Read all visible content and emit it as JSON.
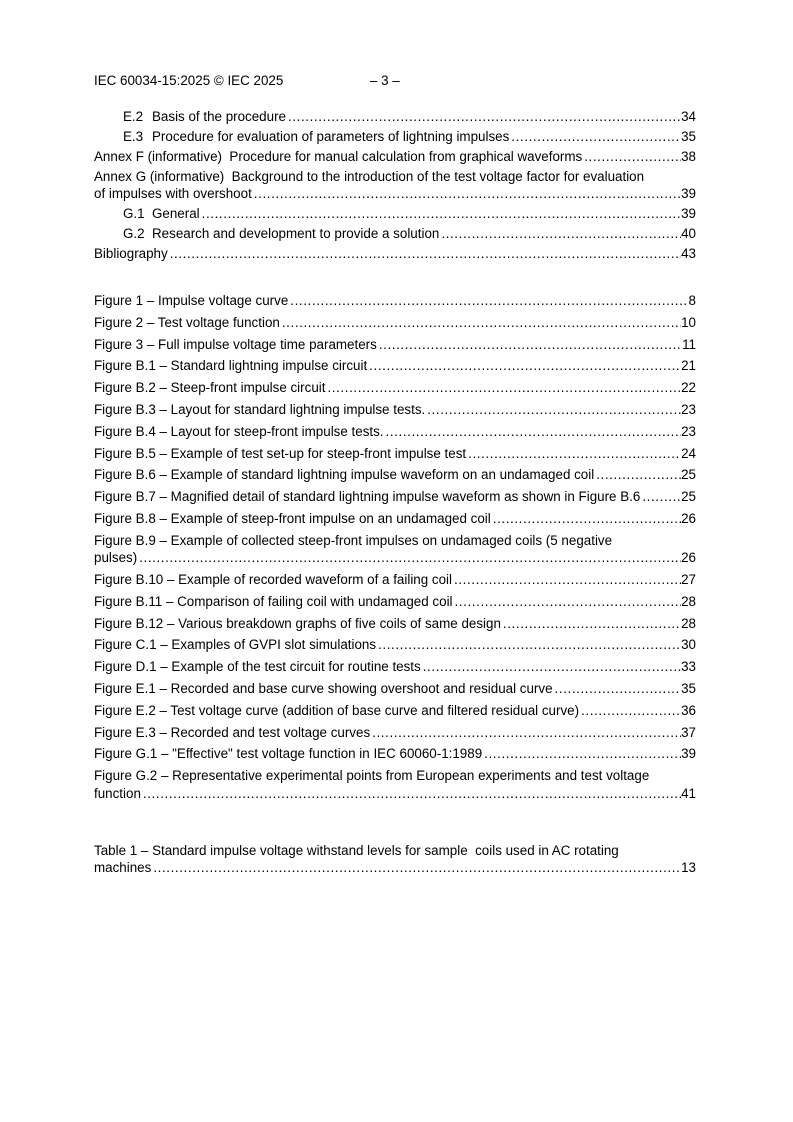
{
  "header": {
    "doc_reference": "IEC 60034-15:2025 © IEC 2025",
    "page_label": "– 3 –"
  },
  "contents": {
    "entries": [
      {
        "number": "E.2",
        "title": "Basis of the procedure",
        "page": "34",
        "indented": true
      },
      {
        "number": "E.3",
        "title": "Procedure for evaluation of parameters of lightning impulses",
        "page": "35",
        "indented": true
      },
      {
        "number": "",
        "title": "Annex F (informative)  Procedure for manual calculation from graphical waveforms",
        "page": "38",
        "indented": false
      },
      {
        "number": "",
        "title": "Annex G (informative)  Background to the introduction of the test voltage factor for evaluation of impulses with overshoot",
        "page": "39",
        "indented": false
      },
      {
        "number": "G.1",
        "title": "General",
        "page": "39",
        "indented": true
      },
      {
        "number": "G.2",
        "title": "Research and development to provide a solution",
        "page": "40",
        "indented": true
      },
      {
        "number": "",
        "title": "Bibliography",
        "page": "43",
        "indented": false
      }
    ]
  },
  "figures": {
    "entries": [
      {
        "number": "",
        "title": "Figure 1 – Impulse voltage curve",
        "page": "8",
        "indented": false
      },
      {
        "number": "",
        "title": "Figure 2 – Test voltage function",
        "page": "10",
        "indented": false
      },
      {
        "number": "",
        "title": "Figure 3 – Full impulse voltage time parameters",
        "page": "11",
        "indented": false
      },
      {
        "number": "",
        "title": "Figure B.1 – Standard lightning impulse circuit",
        "page": "21",
        "indented": false
      },
      {
        "number": "",
        "title": "Figure B.2 – Steep-front impulse circuit",
        "page": "22",
        "indented": false
      },
      {
        "number": "",
        "title": "Figure B.3 – Layout for standard lightning impulse tests.",
        "page": "23",
        "indented": false
      },
      {
        "number": "",
        "title": "Figure B.4 – Layout for steep-front impulse tests.",
        "page": "23",
        "indented": false
      },
      {
        "number": "",
        "title": "Figure B.5 – Example of test set-up for steep-front impulse test",
        "page": "24",
        "indented": false
      },
      {
        "number": "",
        "title": "Figure B.6 – Example of standard lightning impulse waveform on an undamaged coil",
        "page": "25",
        "indented": false
      },
      {
        "number": "",
        "title": "Figure B.7 – Magnified detail of standard lightning impulse waveform as shown in Figure B.6",
        "page": "25",
        "indented": false
      },
      {
        "number": "",
        "title": "Figure B.8 – Example of steep-front impulse on an undamaged coil",
        "page": "26",
        "indented": false
      },
      {
        "number": "",
        "title": "Figure B.9 – Example of collected steep-front impulses on undamaged coils (5 negative pulses)",
        "page": "26",
        "indented": false
      },
      {
        "number": "",
        "title": "Figure B.10 – Example of recorded waveform of a failing coil",
        "page": "27",
        "indented": false
      },
      {
        "number": "",
        "title": "Figure B.11 – Comparison of failing coil with undamaged coil",
        "page": "28",
        "indented": false
      },
      {
        "number": "",
        "title": "Figure B.12 – Various breakdown graphs of five coils of same design",
        "page": "28",
        "indented": false
      },
      {
        "number": "",
        "title": "Figure C.1 – Examples of GVPI slot simulations",
        "page": "30",
        "indented": false
      },
      {
        "number": "",
        "title": "Figure D.1 – Example of the test circuit for routine tests",
        "page": "33",
        "indented": false
      },
      {
        "number": "",
        "title": "Figure E.1 – Recorded and base curve showing overshoot and residual curve",
        "page": "35",
        "indented": false
      },
      {
        "number": "",
        "title": "Figure E.2 – Test voltage curve (addition of base curve and filtered residual curve)",
        "page": "36",
        "indented": false
      },
      {
        "number": "",
        "title": "Figure E.3 – Recorded and test voltage curves",
        "page": "37",
        "indented": false
      },
      {
        "number": "",
        "title": "Figure G.1 – \"Effective\" test voltage function in IEC 60060-1:1989",
        "page": "39",
        "indented": false
      },
      {
        "number": "",
        "title": "Figure G.2 – Representative experimental points from European experiments and test voltage function",
        "page": "41",
        "indented": false
      }
    ]
  },
  "tables": {
    "entries": [
      {
        "number": "",
        "title": "Table 1 – Standard impulse voltage withstand levels for sample  coils used in AC rotating machines",
        "page": "13",
        "indented": false
      }
    ]
  }
}
